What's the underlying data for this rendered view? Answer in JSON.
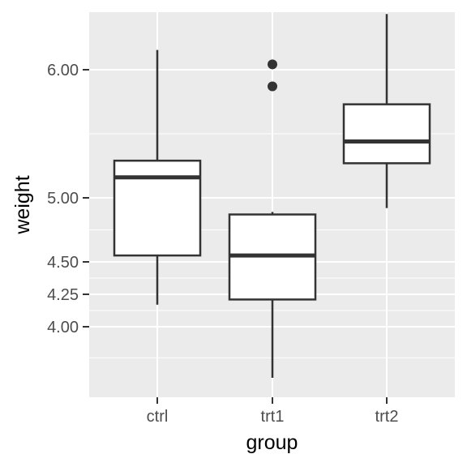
{
  "chart_data": {
    "type": "box",
    "xlabel": "group",
    "ylabel": "weight",
    "categories": [
      "ctrl",
      "trt1",
      "trt2"
    ],
    "y_scale": "nonlinear-custom",
    "y_ticks": [
      4.0,
      4.25,
      4.5,
      5.0,
      6.0
    ],
    "y_tick_labels": [
      "4.00",
      "4.25",
      "4.50",
      "5.00",
      "6.00"
    ],
    "ylim": [
      3.5,
      6.32
    ],
    "grid": true,
    "boxes": [
      {
        "group": "ctrl",
        "whisker_low": 4.17,
        "q1": 4.55,
        "median": 5.16,
        "q3": 5.29,
        "whisker_high": 6.11,
        "outliers": []
      },
      {
        "group": "trt1",
        "whisker_low": 3.59,
        "q1": 4.21,
        "median": 4.55,
        "q3": 4.87,
        "whisker_high": 4.89,
        "outliers": [
          5.87,
          6.03
        ]
      },
      {
        "group": "trt2",
        "whisker_low": 4.92,
        "q1": 5.27,
        "median": 5.44,
        "q3": 5.73,
        "whisker_high": 6.31,
        "outliers": []
      }
    ],
    "colors": {
      "panel_background": "#ebebeb",
      "grid": "#ffffff",
      "box_fill": "#ffffff",
      "box_line": "#333333",
      "tick": "#333333"
    }
  }
}
